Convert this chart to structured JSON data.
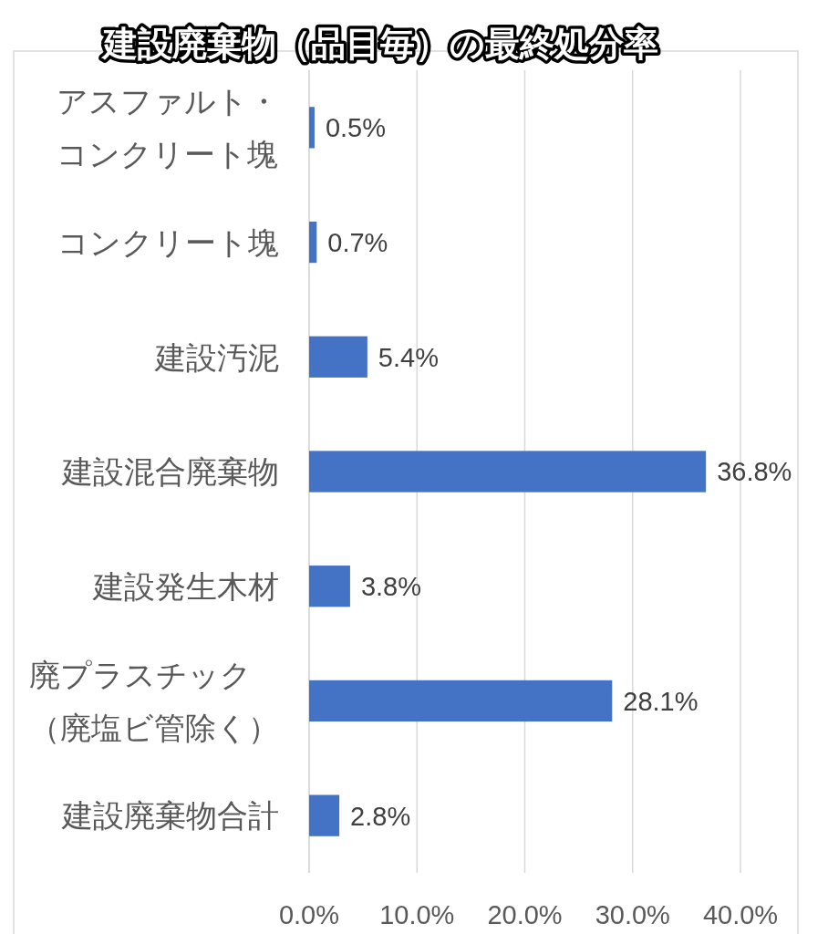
{
  "chart_data": {
    "type": "bar",
    "orientation": "horizontal",
    "title": "建設廃棄物（品目毎）の最終処分率",
    "categories": [
      "アスファルト・コンクリート塊",
      "コンクリート塊",
      "建設汚泥",
      "建設混合廃棄物",
      "建設発生木材",
      "廃プラスチック（廃塩ビ管除く）",
      "建設廃棄物合計"
    ],
    "values": [
      0.5,
      0.7,
      5.4,
      36.8,
      3.8,
      28.1,
      2.8
    ],
    "value_labels": [
      "0.5%",
      "0.7%",
      "5.4%",
      "36.8%",
      "3.8%",
      "28.1%",
      "2.8%"
    ],
    "color": "#4472c4",
    "xlim": [
      0,
      40
    ],
    "xticks": [
      {
        "value": 0,
        "label": "0.0%"
      },
      {
        "value": 10,
        "label": "10.0%"
      },
      {
        "value": 20,
        "label": "20.0%"
      },
      {
        "value": 30,
        "label": "30.0%"
      },
      {
        "value": 40,
        "label": "40.0%"
      }
    ],
    "grid": "x"
  }
}
